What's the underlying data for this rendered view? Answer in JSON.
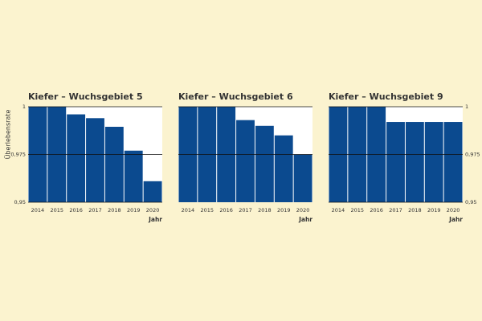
{
  "chart_data": [
    {
      "type": "bar",
      "title": "Kiefer – Wuchsgebiet 5",
      "x_label": "Jahr",
      "y_label": "Überlebensrate",
      "categories": [
        "2014",
        "2015",
        "2016",
        "2017",
        "2018",
        "2019",
        "2020"
      ],
      "values": [
        1,
        1,
        0.996,
        0.994,
        0.9895,
        0.977,
        0.961
      ],
      "color": "#0b4a8f",
      "ylim": [
        0.95,
        1
      ],
      "yticks": [
        {
          "value": 0.95,
          "label": "0,95"
        },
        {
          "value": 0.975,
          "label": "0,975"
        },
        1
      ],
      "tick_side": "left",
      "grid": true
    },
    {
      "type": "bar",
      "title": "Kiefer – Wuchsgebiet 6",
      "x_label": "Jahr",
      "categories": [
        "2014",
        "2015",
        "2016",
        "2017",
        "2018",
        "2019",
        "2020"
      ],
      "values": [
        1,
        1,
        1,
        0.993,
        0.99,
        0.985,
        0.975
      ],
      "color": "#0b4a8f",
      "ylim": [
        0.95,
        1
      ],
      "yticks": [
        0.975,
        1
      ],
      "tick_side": "none",
      "grid": true
    },
    {
      "type": "bar",
      "title": "Kiefer – Wuchsgebiet 9",
      "x_label": "Jahr",
      "categories": [
        "2014",
        "2015",
        "2016",
        "2017",
        "2018",
        "2019",
        "2020"
      ],
      "values": [
        1,
        1,
        1,
        0.992,
        0.992,
        0.992,
        0.992
      ],
      "color": "#0b4a8f",
      "ylim": [
        0.95,
        1
      ],
      "yticks": [
        {
          "value": 0.95,
          "label": "0,95"
        },
        {
          "value": 0.975,
          "label": "0,975"
        },
        1
      ],
      "tick_side": "right",
      "grid": true
    }
  ]
}
